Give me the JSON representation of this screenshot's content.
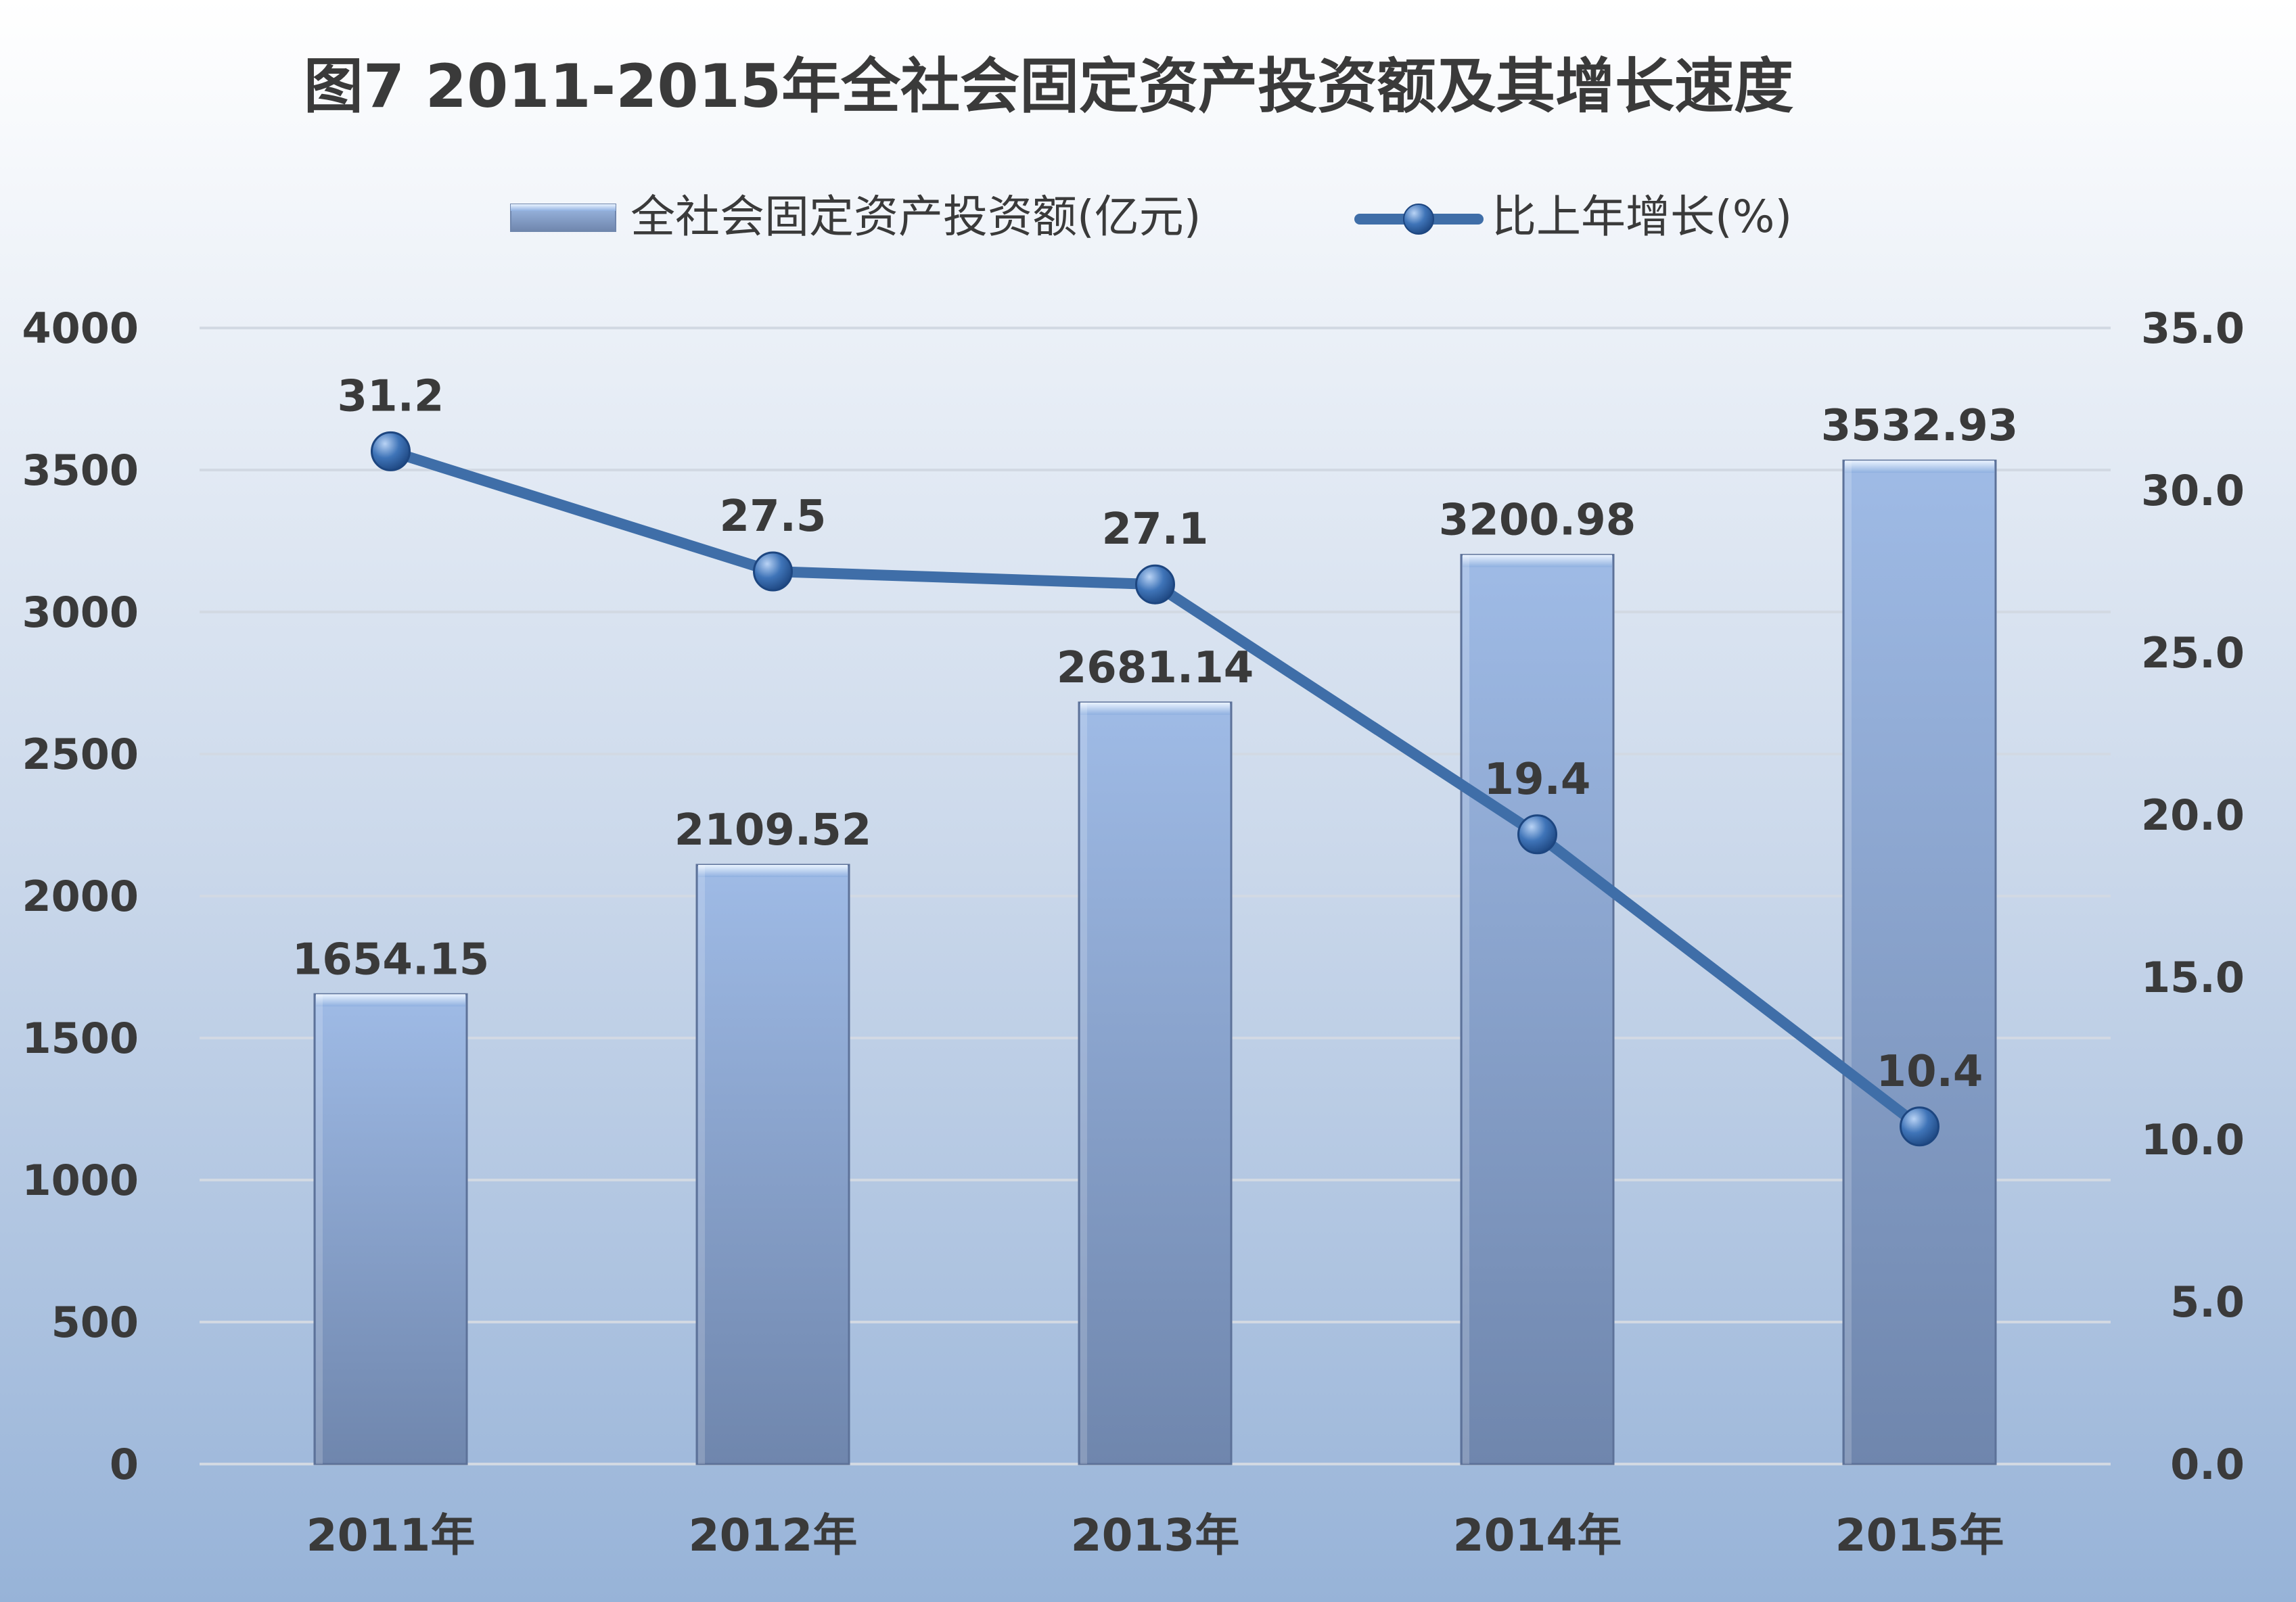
{
  "chart_data": {
    "type": "bar+line",
    "title": "图7  2011-2015年全社会固定资产投资额及其增长速度",
    "categories": [
      "2011年",
      "2012年",
      "2013年",
      "2014年",
      "2015年"
    ],
    "series": [
      {
        "name": "全社会固定资产投资额(亿元)",
        "type": "bar",
        "axis": "left",
        "values": [
          1654.15,
          2109.52,
          2681.14,
          3200.98,
          3532.93
        ],
        "labels": [
          "1654.15",
          "2109.52",
          "2681.14",
          "3200.98",
          "3532.93"
        ]
      },
      {
        "name": "比上年增长(%)",
        "type": "line",
        "axis": "right",
        "values": [
          31.2,
          27.5,
          27.1,
          19.4,
          10.4
        ],
        "labels": [
          "31.2",
          "27.5",
          "27.1",
          "19.4",
          "10.4"
        ]
      }
    ],
    "y_left": {
      "range": [
        0,
        4000
      ],
      "ticks": [
        "0",
        "500",
        "1000",
        "1500",
        "2000",
        "2500",
        "3000",
        "3500",
        "4000"
      ]
    },
    "y_right": {
      "range": [
        0,
        35
      ],
      "ticks": [
        "0.0",
        "5.0",
        "10.0",
        "15.0",
        "20.0",
        "25.0",
        "30.0",
        "35.0"
      ]
    },
    "grid": true,
    "legend_position": "top-center",
    "colors": {
      "bar_top": "#9fbbe6",
      "bar_bottom": "#6f86ad",
      "line": "#3f6ea8",
      "marker": "#2f63a3",
      "text": "#3a3a3a",
      "grid": "#d2d9e3",
      "background_top": "#ffffff",
      "background_bottom": "#97b3d8"
    }
  }
}
